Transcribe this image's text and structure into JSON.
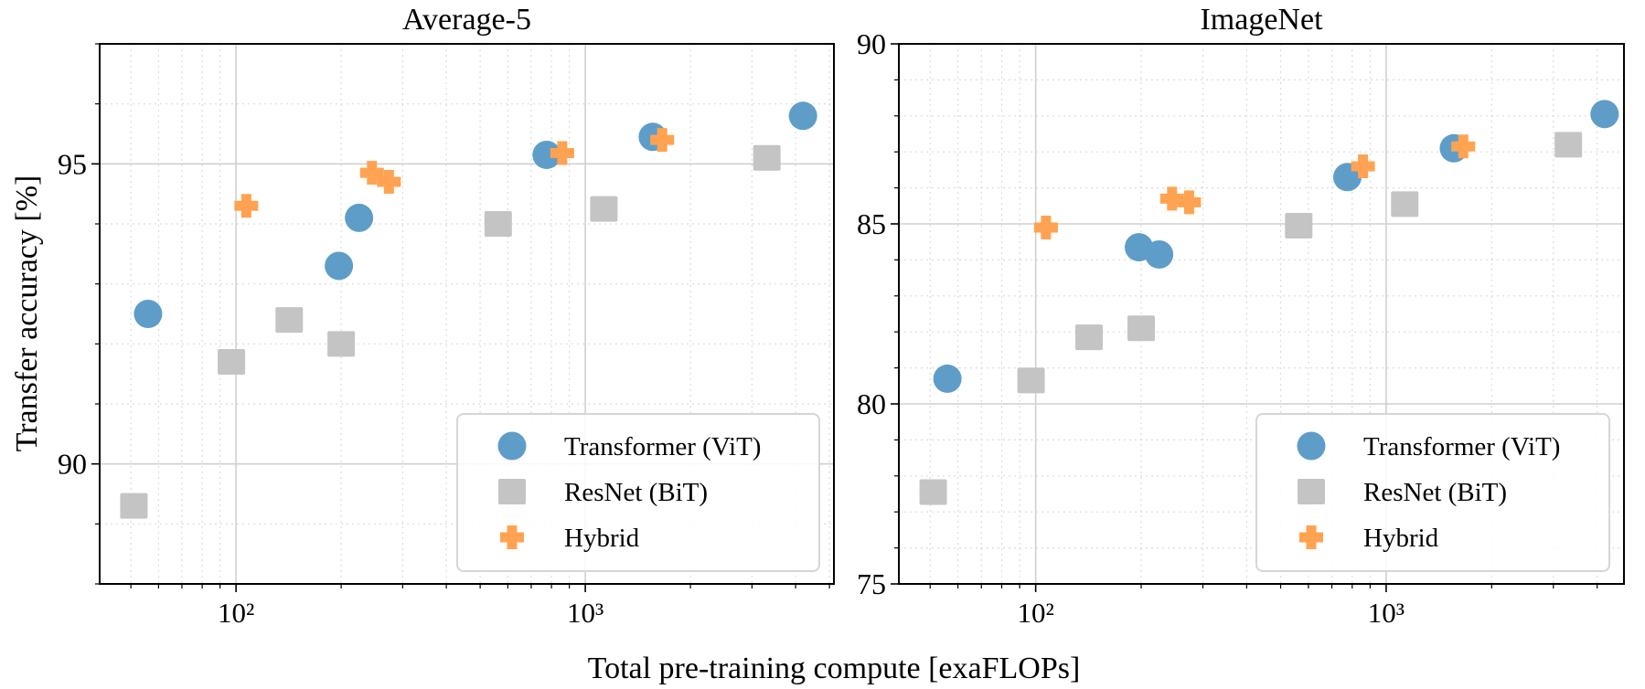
{
  "figure": {
    "ylabel": "Transfer accuracy [%]",
    "xlabel": "Total pre-training compute [exaFLOPs]"
  },
  "colors": {
    "Transformer (ViT)": "#5f9dc9",
    "ResNet (BiT)": "#c4c4c4",
    "Hybrid": "#ffa352"
  },
  "chart_data": [
    {
      "type": "scatter",
      "title": "Average-5",
      "xscale": "log",
      "xlim": [
        40.7,
        5150
      ],
      "ylim": [
        88,
        97
      ],
      "yticks": [
        90,
        95
      ],
      "ytick_labels": [
        "90",
        "95"
      ],
      "yminor_step": 1,
      "xticks": [
        100,
        1000
      ],
      "xtick_labels": [
        "10²",
        "10³"
      ],
      "grid": true,
      "legend": "lower-right",
      "series": [
        {
          "name": "Transformer (ViT)",
          "marker": "circle",
          "x": [
            56,
            197,
            225,
            775,
            1560,
            4200
          ],
          "y": [
            92.5,
            93.3,
            94.1,
            95.15,
            95.45,
            95.8
          ]
        },
        {
          "name": "ResNet (BiT)",
          "marker": "square",
          "x": [
            51,
            97,
            142,
            200,
            563,
            1130,
            3310
          ],
          "y": [
            89.3,
            91.7,
            92.4,
            92.0,
            94.0,
            94.25,
            95.1
          ]
        },
        {
          "name": "Hybrid",
          "marker": "plus",
          "x": [
            107,
            245,
            274,
            859,
            1660
          ],
          "y": [
            94.3,
            94.85,
            94.7,
            95.18,
            95.4
          ]
        }
      ]
    },
    {
      "type": "scatter",
      "title": "ImageNet",
      "xscale": "log",
      "xlim": [
        40.7,
        4770
      ],
      "ylim": [
        75,
        90
      ],
      "yticks": [
        75,
        80,
        85,
        90
      ],
      "ytick_labels": [
        "75",
        "80",
        "85",
        "90"
      ],
      "yminor_step": 1,
      "xticks": [
        100,
        1000
      ],
      "xtick_labels": [
        "10²",
        "10³"
      ],
      "grid": true,
      "legend": "lower-right",
      "series": [
        {
          "name": "Transformer (ViT)",
          "marker": "circle",
          "x": [
            56,
            197,
            225,
            775,
            1560,
            4200
          ],
          "y": [
            80.7,
            84.35,
            84.15,
            86.3,
            87.1,
            88.05
          ]
        },
        {
          "name": "ResNet (BiT)",
          "marker": "square",
          "x": [
            51,
            97,
            142,
            200,
            563,
            1130,
            3310
          ],
          "y": [
            77.55,
            80.65,
            81.85,
            82.1,
            84.95,
            85.55,
            87.2
          ]
        },
        {
          "name": "Hybrid",
          "marker": "plus",
          "x": [
            107,
            245,
            274,
            859,
            1660
          ],
          "y": [
            84.9,
            85.7,
            85.6,
            86.6,
            87.15
          ]
        }
      ]
    }
  ]
}
